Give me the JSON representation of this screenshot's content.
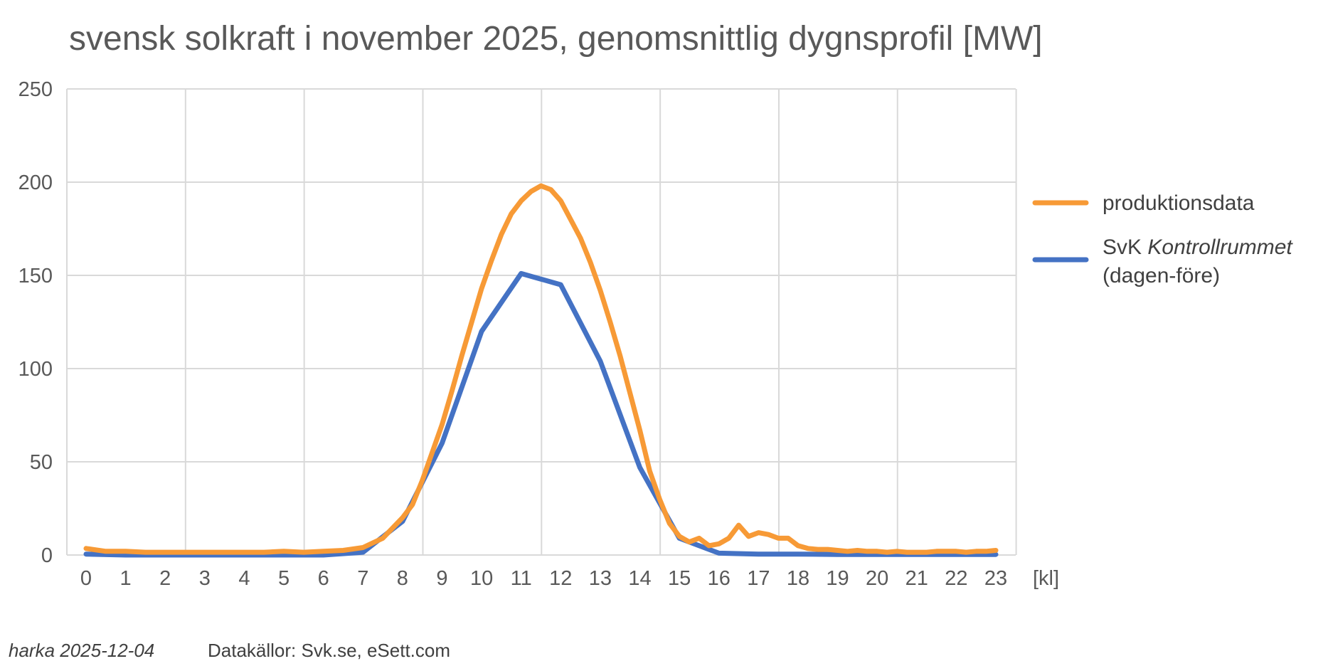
{
  "chart_data": {
    "type": "line",
    "title": "svensk solkraft i november 2025, genomsnittlig dygnsprofil [MW]",
    "xlabel": "[kl]",
    "ylabel": "",
    "x_categories": [
      "0",
      "1",
      "2",
      "3",
      "4",
      "5",
      "6",
      "7",
      "8",
      "9",
      "10",
      "11",
      "12",
      "13",
      "14",
      "15",
      "16",
      "17",
      "18",
      "19",
      "20",
      "21",
      "22",
      "23"
    ],
    "xlim": [
      0,
      23
    ],
    "ylim": [
      0,
      250
    ],
    "y_ticks": [
      "0",
      "50",
      "100",
      "150",
      "200",
      "250"
    ],
    "grid": true,
    "legend_position": "right",
    "series": [
      {
        "name": "produktionsdata",
        "color": "#f79a36",
        "x": [
          0,
          0.5,
          1,
          1.5,
          2,
          2.5,
          3,
          3.5,
          4,
          4.5,
          5,
          5.5,
          6,
          6.5,
          7,
          7.5,
          8,
          8.25,
          8.5,
          8.75,
          9,
          9.25,
          9.5,
          9.75,
          10,
          10.25,
          10.5,
          10.75,
          11,
          11.25,
          11.5,
          11.75,
          12,
          12.25,
          12.5,
          12.75,
          13,
          13.25,
          13.5,
          13.75,
          14,
          14.25,
          14.5,
          14.75,
          15,
          15.25,
          15.5,
          15.75,
          16,
          16.25,
          16.5,
          16.75,
          17,
          17.25,
          17.5,
          17.75,
          18,
          18.25,
          18.5,
          18.75,
          19,
          19.25,
          19.5,
          19.75,
          20,
          20.25,
          20.5,
          20.75,
          21,
          21.25,
          21.5,
          21.75,
          22,
          22.25,
          22.5,
          22.75,
          23
        ],
        "values": [
          3.5,
          2,
          2,
          1.5,
          1.5,
          1.5,
          1.5,
          1.5,
          1.5,
          1.5,
          2,
          1.5,
          2,
          2.5,
          4,
          9,
          20,
          27,
          40,
          55,
          70,
          88,
          107,
          125,
          143,
          158,
          172,
          183,
          190,
          195,
          198,
          196,
          190,
          180,
          170,
          157,
          142,
          125,
          107,
          87,
          67,
          45,
          30,
          17,
          10,
          7,
          9,
          5,
          6,
          9,
          16,
          10,
          12,
          11,
          9,
          9,
          5,
          3.5,
          3,
          3,
          2.5,
          2,
          2.5,
          2,
          2,
          1.5,
          2,
          1.5,
          1.5,
          1.5,
          2,
          2,
          2,
          1.5,
          2,
          2,
          2.5
        ]
      },
      {
        "name": "SvK Kontrollrummet (dagen-före)",
        "name_plain": "SvK",
        "name_italic": "Kontrollrummet",
        "name_line2": "(dagen-före)",
        "color": "#4472c4",
        "x": [
          0,
          1,
          2,
          3,
          4,
          5,
          6,
          7,
          8,
          9,
          10,
          11,
          12,
          13,
          14,
          15,
          16,
          17,
          18,
          19,
          20,
          21,
          22,
          23
        ],
        "values": [
          0.5,
          0,
          0,
          0,
          0,
          0,
          0,
          1.5,
          18,
          60,
          120,
          151,
          145,
          104,
          47,
          9,
          1,
          0.5,
          0.5,
          0.3,
          0.3,
          0.3,
          0.3,
          0.3
        ]
      }
    ]
  },
  "footer": {
    "author": "harka 2025-12-04",
    "sources": "Datakällor: Svk.se, eSett.com"
  }
}
